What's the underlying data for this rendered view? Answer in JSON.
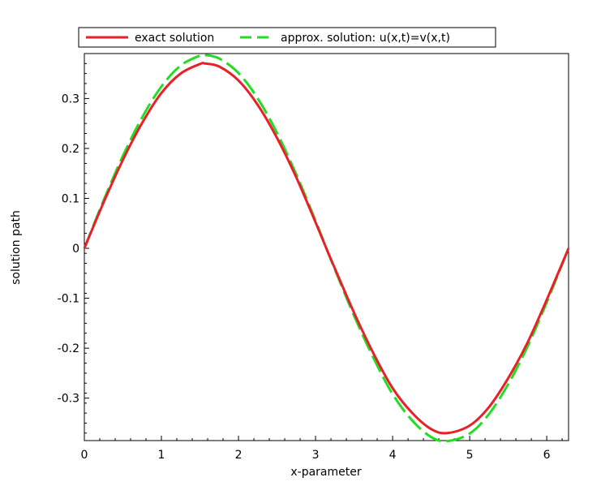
{
  "chart_data": {
    "type": "line",
    "title": "",
    "xlabel": "x-parameter",
    "ylabel": "solution path",
    "xlim": [
      0,
      6.283
    ],
    "ylim": [
      -0.385,
      0.39
    ],
    "x_ticks": [
      0,
      1,
      2,
      3,
      4,
      5,
      6
    ],
    "x_tick_labels": [
      "0",
      "1",
      "2",
      "3",
      "4",
      "5",
      "6"
    ],
    "y_ticks": [
      0.3,
      0.2,
      0.1,
      0,
      -0.1,
      -0.2,
      -0.3
    ],
    "y_tick_labels": [
      "0.3",
      "0.2",
      "0.1",
      "0",
      "-0.1",
      "-0.2",
      "-0.3"
    ],
    "grid": false,
    "legend": "top",
    "series": [
      {
        "name": "exact solution",
        "color": "#e8202a",
        "style": "solid",
        "x": [
          0,
          0.25,
          0.5,
          0.75,
          1.0,
          1.25,
          1.5,
          1.57,
          1.75,
          2.0,
          2.25,
          2.5,
          2.75,
          3.0,
          3.14,
          3.25,
          3.5,
          3.75,
          4.0,
          4.25,
          4.5,
          4.71,
          5.0,
          5.25,
          5.5,
          5.75,
          6.0,
          6.283
        ],
        "y": [
          0,
          0.092,
          0.177,
          0.251,
          0.311,
          0.35,
          0.369,
          0.37,
          0.364,
          0.336,
          0.287,
          0.221,
          0.142,
          0.052,
          0.0,
          -0.04,
          -0.129,
          -0.21,
          -0.28,
          -0.329,
          -0.362,
          -0.37,
          -0.355,
          -0.318,
          -0.26,
          -0.189,
          -0.103,
          0.0
        ]
      },
      {
        "name": "approx. solution: u(x,t)=v(x,t)",
        "color": "#22dd22",
        "style": "dashed",
        "x": [
          0,
          0.25,
          0.5,
          0.75,
          1.0,
          1.25,
          1.5,
          1.57,
          1.75,
          2.0,
          2.25,
          2.5,
          2.75,
          3.0,
          3.14,
          3.25,
          3.5,
          3.75,
          4.0,
          4.25,
          4.5,
          4.71,
          5.0,
          5.25,
          5.5,
          5.75,
          6.0,
          6.283
        ],
        "y": [
          0,
          0.096,
          0.185,
          0.262,
          0.324,
          0.366,
          0.386,
          0.387,
          0.38,
          0.351,
          0.3,
          0.231,
          0.148,
          0.055,
          0.0,
          -0.042,
          -0.135,
          -0.219,
          -0.292,
          -0.344,
          -0.378,
          -0.386,
          -0.371,
          -0.332,
          -0.272,
          -0.197,
          -0.108,
          0.0
        ]
      }
    ]
  }
}
